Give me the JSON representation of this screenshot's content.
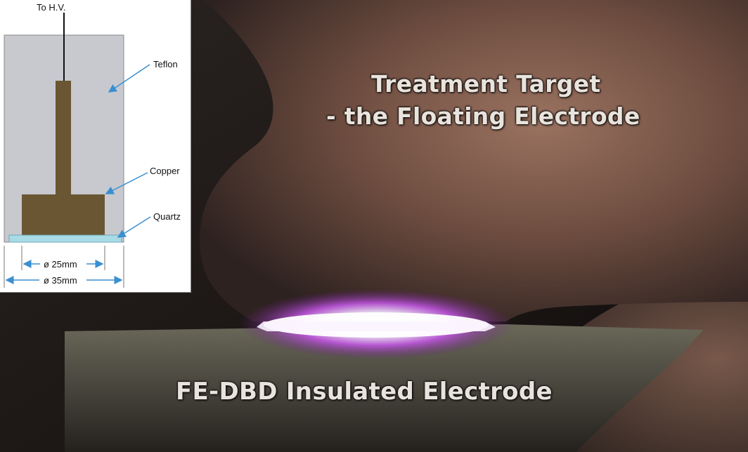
{
  "photo": {
    "caption_target_line1": "Treatment Target",
    "caption_target_line2": "- the Floating Electrode",
    "caption_electrode": "FE-DBD Insulated Electrode"
  },
  "diagram": {
    "hv_label": "To H.V.",
    "teflon_label": "Teflon",
    "copper_label": "Copper",
    "quartz_label": "Quartz",
    "inner_diameter": "ø 25mm",
    "outer_diameter": "ø 35mm",
    "colors": {
      "teflon": "#c7c9cf",
      "copper": "#6b5634",
      "quartz": "#a9dbe6",
      "arrow": "#3a8fd0"
    }
  }
}
